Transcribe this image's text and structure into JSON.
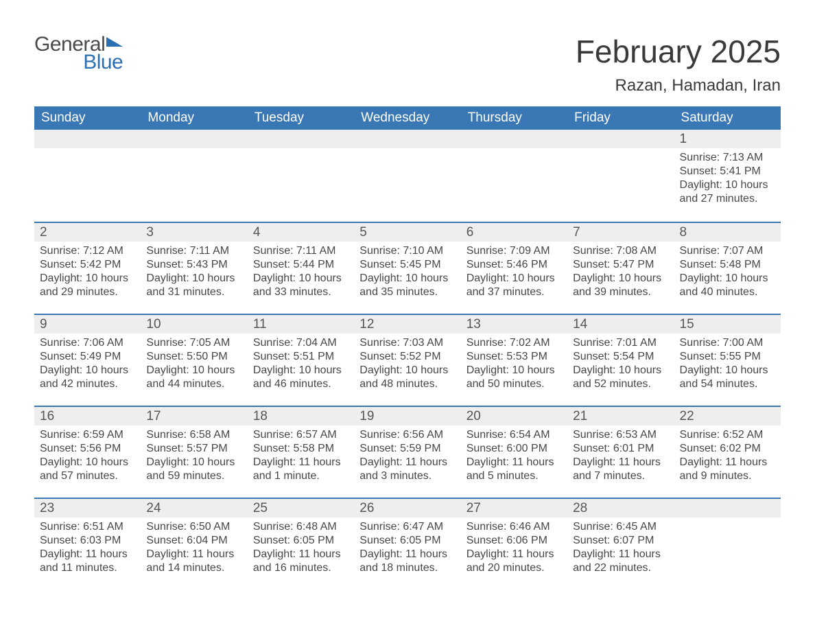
{
  "logo": {
    "general": "General",
    "blue": "Blue"
  },
  "title": "February 2025",
  "location": "Razan, Hamadan, Iran",
  "colors": {
    "header_bg": "#3a78b5",
    "header_text": "#ffffff",
    "daynum_bg": "#eeeeee",
    "text": "#474747",
    "logo_gray": "#4a4a4a",
    "logo_blue": "#2a6fb2",
    "week_border": "#3a78b5",
    "background": "#ffffff"
  },
  "days_of_week": [
    "Sunday",
    "Monday",
    "Tuesday",
    "Wednesday",
    "Thursday",
    "Friday",
    "Saturday"
  ],
  "weeks": [
    [
      {
        "n": "",
        "sr": "",
        "ss": "",
        "dl": ""
      },
      {
        "n": "",
        "sr": "",
        "ss": "",
        "dl": ""
      },
      {
        "n": "",
        "sr": "",
        "ss": "",
        "dl": ""
      },
      {
        "n": "",
        "sr": "",
        "ss": "",
        "dl": ""
      },
      {
        "n": "",
        "sr": "",
        "ss": "",
        "dl": ""
      },
      {
        "n": "",
        "sr": "",
        "ss": "",
        "dl": ""
      },
      {
        "n": "1",
        "sr": "Sunrise: 7:13 AM",
        "ss": "Sunset: 5:41 PM",
        "dl": "Daylight: 10 hours and 27 minutes."
      }
    ],
    [
      {
        "n": "2",
        "sr": "Sunrise: 7:12 AM",
        "ss": "Sunset: 5:42 PM",
        "dl": "Daylight: 10 hours and 29 minutes."
      },
      {
        "n": "3",
        "sr": "Sunrise: 7:11 AM",
        "ss": "Sunset: 5:43 PM",
        "dl": "Daylight: 10 hours and 31 minutes."
      },
      {
        "n": "4",
        "sr": "Sunrise: 7:11 AM",
        "ss": "Sunset: 5:44 PM",
        "dl": "Daylight: 10 hours and 33 minutes."
      },
      {
        "n": "5",
        "sr": "Sunrise: 7:10 AM",
        "ss": "Sunset: 5:45 PM",
        "dl": "Daylight: 10 hours and 35 minutes."
      },
      {
        "n": "6",
        "sr": "Sunrise: 7:09 AM",
        "ss": "Sunset: 5:46 PM",
        "dl": "Daylight: 10 hours and 37 minutes."
      },
      {
        "n": "7",
        "sr": "Sunrise: 7:08 AM",
        "ss": "Sunset: 5:47 PM",
        "dl": "Daylight: 10 hours and 39 minutes."
      },
      {
        "n": "8",
        "sr": "Sunrise: 7:07 AM",
        "ss": "Sunset: 5:48 PM",
        "dl": "Daylight: 10 hours and 40 minutes."
      }
    ],
    [
      {
        "n": "9",
        "sr": "Sunrise: 7:06 AM",
        "ss": "Sunset: 5:49 PM",
        "dl": "Daylight: 10 hours and 42 minutes."
      },
      {
        "n": "10",
        "sr": "Sunrise: 7:05 AM",
        "ss": "Sunset: 5:50 PM",
        "dl": "Daylight: 10 hours and 44 minutes."
      },
      {
        "n": "11",
        "sr": "Sunrise: 7:04 AM",
        "ss": "Sunset: 5:51 PM",
        "dl": "Daylight: 10 hours and 46 minutes."
      },
      {
        "n": "12",
        "sr": "Sunrise: 7:03 AM",
        "ss": "Sunset: 5:52 PM",
        "dl": "Daylight: 10 hours and 48 minutes."
      },
      {
        "n": "13",
        "sr": "Sunrise: 7:02 AM",
        "ss": "Sunset: 5:53 PM",
        "dl": "Daylight: 10 hours and 50 minutes."
      },
      {
        "n": "14",
        "sr": "Sunrise: 7:01 AM",
        "ss": "Sunset: 5:54 PM",
        "dl": "Daylight: 10 hours and 52 minutes."
      },
      {
        "n": "15",
        "sr": "Sunrise: 7:00 AM",
        "ss": "Sunset: 5:55 PM",
        "dl": "Daylight: 10 hours and 54 minutes."
      }
    ],
    [
      {
        "n": "16",
        "sr": "Sunrise: 6:59 AM",
        "ss": "Sunset: 5:56 PM",
        "dl": "Daylight: 10 hours and 57 minutes."
      },
      {
        "n": "17",
        "sr": "Sunrise: 6:58 AM",
        "ss": "Sunset: 5:57 PM",
        "dl": "Daylight: 10 hours and 59 minutes."
      },
      {
        "n": "18",
        "sr": "Sunrise: 6:57 AM",
        "ss": "Sunset: 5:58 PM",
        "dl": "Daylight: 11 hours and 1 minute."
      },
      {
        "n": "19",
        "sr": "Sunrise: 6:56 AM",
        "ss": "Sunset: 5:59 PM",
        "dl": "Daylight: 11 hours and 3 minutes."
      },
      {
        "n": "20",
        "sr": "Sunrise: 6:54 AM",
        "ss": "Sunset: 6:00 PM",
        "dl": "Daylight: 11 hours and 5 minutes."
      },
      {
        "n": "21",
        "sr": "Sunrise: 6:53 AM",
        "ss": "Sunset: 6:01 PM",
        "dl": "Daylight: 11 hours and 7 minutes."
      },
      {
        "n": "22",
        "sr": "Sunrise: 6:52 AM",
        "ss": "Sunset: 6:02 PM",
        "dl": "Daylight: 11 hours and 9 minutes."
      }
    ],
    [
      {
        "n": "23",
        "sr": "Sunrise: 6:51 AM",
        "ss": "Sunset: 6:03 PM",
        "dl": "Daylight: 11 hours and 11 minutes."
      },
      {
        "n": "24",
        "sr": "Sunrise: 6:50 AM",
        "ss": "Sunset: 6:04 PM",
        "dl": "Daylight: 11 hours and 14 minutes."
      },
      {
        "n": "25",
        "sr": "Sunrise: 6:48 AM",
        "ss": "Sunset: 6:05 PM",
        "dl": "Daylight: 11 hours and 16 minutes."
      },
      {
        "n": "26",
        "sr": "Sunrise: 6:47 AM",
        "ss": "Sunset: 6:05 PM",
        "dl": "Daylight: 11 hours and 18 minutes."
      },
      {
        "n": "27",
        "sr": "Sunrise: 6:46 AM",
        "ss": "Sunset: 6:06 PM",
        "dl": "Daylight: 11 hours and 20 minutes."
      },
      {
        "n": "28",
        "sr": "Sunrise: 6:45 AM",
        "ss": "Sunset: 6:07 PM",
        "dl": "Daylight: 11 hours and 22 minutes."
      },
      {
        "n": "",
        "sr": "",
        "ss": "",
        "dl": ""
      }
    ]
  ]
}
